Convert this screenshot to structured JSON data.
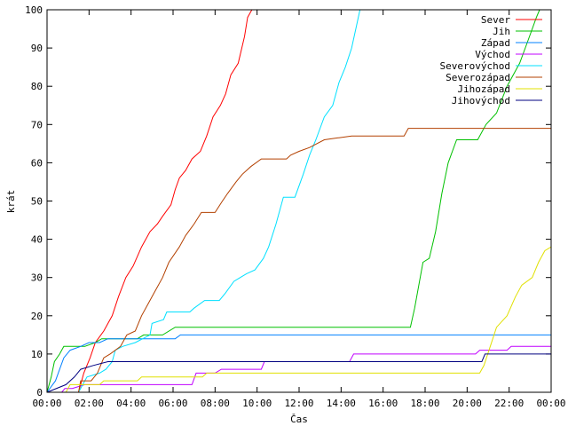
{
  "chart_data": {
    "type": "line",
    "xlabel": "Čas",
    "ylabel": "krát",
    "xlim": [
      0,
      24
    ],
    "ylim": [
      0,
      100
    ],
    "grid": false,
    "legend_position": "top-right",
    "x_ticks": [
      {
        "value": 0,
        "label": "00:00"
      },
      {
        "value": 2,
        "label": "02:00"
      },
      {
        "value": 4,
        "label": "04:00"
      },
      {
        "value": 6,
        "label": "06:00"
      },
      {
        "value": 8,
        "label": "08:00"
      },
      {
        "value": 10,
        "label": "10:00"
      },
      {
        "value": 12,
        "label": "12:00"
      },
      {
        "value": 14,
        "label": "14:00"
      },
      {
        "value": 16,
        "label": "16:00"
      },
      {
        "value": 18,
        "label": "18:00"
      },
      {
        "value": 20,
        "label": "20:00"
      },
      {
        "value": 22,
        "label": "22:00"
      },
      {
        "value": 24,
        "label": "00:00"
      }
    ],
    "y_ticks": [
      {
        "value": 0,
        "label": "0"
      },
      {
        "value": 10,
        "label": "10"
      },
      {
        "value": 20,
        "label": "20"
      },
      {
        "value": 30,
        "label": "30"
      },
      {
        "value": 40,
        "label": "40"
      },
      {
        "value": 50,
        "label": "50"
      },
      {
        "value": 60,
        "label": "60"
      },
      {
        "value": 70,
        "label": "70"
      },
      {
        "value": 80,
        "label": "80"
      },
      {
        "value": 90,
        "label": "90"
      },
      {
        "value": 100,
        "label": "100"
      }
    ],
    "series": [
      {
        "name": "Sever",
        "color": "#ff0000",
        "points": [
          [
            0,
            0
          ],
          [
            1.5,
            0
          ],
          [
            1.6,
            2
          ],
          [
            1.75,
            5
          ],
          [
            2.05,
            9
          ],
          [
            2.3,
            13
          ],
          [
            2.7,
            16
          ],
          [
            3.1,
            20
          ],
          [
            3.4,
            25
          ],
          [
            3.75,
            30
          ],
          [
            4.1,
            33
          ],
          [
            4.5,
            38
          ],
          [
            4.9,
            42
          ],
          [
            5.25,
            44
          ],
          [
            5.5,
            46
          ],
          [
            5.9,
            49
          ],
          [
            6.1,
            53
          ],
          [
            6.3,
            56
          ],
          [
            6.6,
            58
          ],
          [
            6.9,
            61
          ],
          [
            7.3,
            63
          ],
          [
            7.6,
            67
          ],
          [
            7.9,
            72
          ],
          [
            8.25,
            75
          ],
          [
            8.5,
            78
          ],
          [
            8.75,
            83
          ],
          [
            9.1,
            86
          ],
          [
            9.4,
            93
          ],
          [
            9.55,
            98
          ],
          [
            9.75,
            100
          ]
        ]
      },
      {
        "name": "Jih",
        "color": "#00c000",
        "points": [
          [
            0,
            0
          ],
          [
            0.2,
            4
          ],
          [
            0.35,
            8
          ],
          [
            0.6,
            10
          ],
          [
            0.8,
            12
          ],
          [
            1.8,
            12
          ],
          [
            2.3,
            13
          ],
          [
            2.6,
            14
          ],
          [
            4.3,
            14
          ],
          [
            4.6,
            15
          ],
          [
            5.5,
            15
          ],
          [
            6.1,
            17
          ],
          [
            17.3,
            17
          ],
          [
            17.5,
            22
          ],
          [
            17.7,
            28
          ],
          [
            17.9,
            34
          ],
          [
            18.2,
            35
          ],
          [
            18.5,
            42
          ],
          [
            18.8,
            52
          ],
          [
            19.1,
            60
          ],
          [
            19.5,
            66
          ],
          [
            20.5,
            66
          ],
          [
            20.9,
            70
          ],
          [
            21.4,
            73
          ],
          [
            21.9,
            80
          ],
          [
            22.5,
            86
          ],
          [
            22.9,
            92
          ],
          [
            23.3,
            98
          ],
          [
            23.45,
            100
          ]
        ]
      },
      {
        "name": "Západ",
        "color": "#0080ff",
        "points": [
          [
            0,
            0
          ],
          [
            0.4,
            3
          ],
          [
            0.6,
            6
          ],
          [
            0.8,
            9
          ],
          [
            1.1,
            11
          ],
          [
            1.6,
            12
          ],
          [
            2,
            13
          ],
          [
            2.5,
            13
          ],
          [
            2.9,
            14
          ],
          [
            6.1,
            14
          ],
          [
            6.35,
            15
          ],
          [
            24,
            15
          ]
        ]
      },
      {
        "name": "Východ",
        "color": "#c000ff",
        "points": [
          [
            0,
            0
          ],
          [
            0.7,
            0
          ],
          [
            0.85,
            1
          ],
          [
            1.2,
            1
          ],
          [
            1.8,
            2
          ],
          [
            6.9,
            2
          ],
          [
            7.1,
            5
          ],
          [
            8,
            5
          ],
          [
            8.3,
            6
          ],
          [
            10.2,
            6
          ],
          [
            10.35,
            8
          ],
          [
            14.4,
            8
          ],
          [
            14.6,
            10
          ],
          [
            20.4,
            10
          ],
          [
            20.6,
            11
          ],
          [
            21.9,
            11
          ],
          [
            22.1,
            12
          ],
          [
            24,
            12
          ]
        ]
      },
      {
        "name": "Severovýchod",
        "color": "#00e0ff",
        "points": [
          [
            0,
            0
          ],
          [
            1.5,
            0
          ],
          [
            1.7,
            2
          ],
          [
            1.9,
            4
          ],
          [
            2.5,
            5
          ],
          [
            2.8,
            6
          ],
          [
            3.1,
            8
          ],
          [
            3.25,
            11
          ],
          [
            3.6,
            12
          ],
          [
            4.2,
            13
          ],
          [
            4.9,
            15
          ],
          [
            5,
            18
          ],
          [
            5.55,
            19
          ],
          [
            5.7,
            21
          ],
          [
            6.8,
            21
          ],
          [
            7,
            22
          ],
          [
            7.5,
            24
          ],
          [
            8.2,
            24
          ],
          [
            8.5,
            26
          ],
          [
            8.9,
            29
          ],
          [
            9.2,
            30
          ],
          [
            9.5,
            31
          ],
          [
            9.9,
            32
          ],
          [
            10.3,
            35
          ],
          [
            10.55,
            38
          ],
          [
            10.9,
            44
          ],
          [
            11.25,
            51
          ],
          [
            11.8,
            51
          ],
          [
            12.2,
            57
          ],
          [
            12.5,
            62
          ],
          [
            12.8,
            66
          ],
          [
            13.2,
            72
          ],
          [
            13.6,
            75
          ],
          [
            13.9,
            81
          ],
          [
            14.2,
            85
          ],
          [
            14.5,
            90
          ],
          [
            14.7,
            95
          ],
          [
            14.9,
            100
          ]
        ]
      },
      {
        "name": "Severozápad",
        "color": "#b34000",
        "points": [
          [
            0,
            0
          ],
          [
            1.5,
            0
          ],
          [
            1.6,
            3
          ],
          [
            2.1,
            3
          ],
          [
            2.4,
            5
          ],
          [
            2.7,
            9
          ],
          [
            3,
            10
          ],
          [
            3.5,
            12
          ],
          [
            3.8,
            15
          ],
          [
            4.2,
            16
          ],
          [
            4.5,
            20
          ],
          [
            4.8,
            23
          ],
          [
            5.1,
            26
          ],
          [
            5.5,
            30
          ],
          [
            5.8,
            34
          ],
          [
            6.3,
            38
          ],
          [
            6.6,
            41
          ],
          [
            7,
            44
          ],
          [
            7.35,
            47
          ],
          [
            8,
            47
          ],
          [
            8.35,
            50
          ],
          [
            8.6,
            52
          ],
          [
            9,
            55
          ],
          [
            9.3,
            57
          ],
          [
            9.7,
            59
          ],
          [
            10.2,
            61
          ],
          [
            11.4,
            61
          ],
          [
            11.6,
            62
          ],
          [
            12,
            63
          ],
          [
            12.5,
            64
          ],
          [
            13.2,
            66
          ],
          [
            14.5,
            67
          ],
          [
            17,
            67
          ],
          [
            17.2,
            69
          ],
          [
            24,
            69
          ]
        ]
      },
      {
        "name": "Jihozápad",
        "color": "#e0e000",
        "points": [
          [
            0,
            0
          ],
          [
            0.9,
            0
          ],
          [
            1.1,
            2
          ],
          [
            2.5,
            2
          ],
          [
            2.7,
            3
          ],
          [
            4.3,
            3
          ],
          [
            4.5,
            4
          ],
          [
            7.4,
            4
          ],
          [
            7.6,
            5
          ],
          [
            20.6,
            5
          ],
          [
            20.8,
            7
          ],
          [
            21.1,
            12
          ],
          [
            21.4,
            17
          ],
          [
            21.9,
            20
          ],
          [
            22.3,
            25
          ],
          [
            22.6,
            28
          ],
          [
            23.1,
            30
          ],
          [
            23.4,
            34
          ],
          [
            23.7,
            37
          ],
          [
            24,
            38
          ]
        ]
      },
      {
        "name": "Jihovýchod",
        "color": "#000080",
        "points": [
          [
            0,
            0
          ],
          [
            0.9,
            2
          ],
          [
            1.3,
            4
          ],
          [
            1.6,
            6
          ],
          [
            2.2,
            7
          ],
          [
            2.9,
            8
          ],
          [
            10.3,
            8
          ],
          [
            10.45,
            8
          ],
          [
            20.7,
            8
          ],
          [
            20.85,
            10
          ],
          [
            24,
            10
          ]
        ]
      }
    ]
  }
}
